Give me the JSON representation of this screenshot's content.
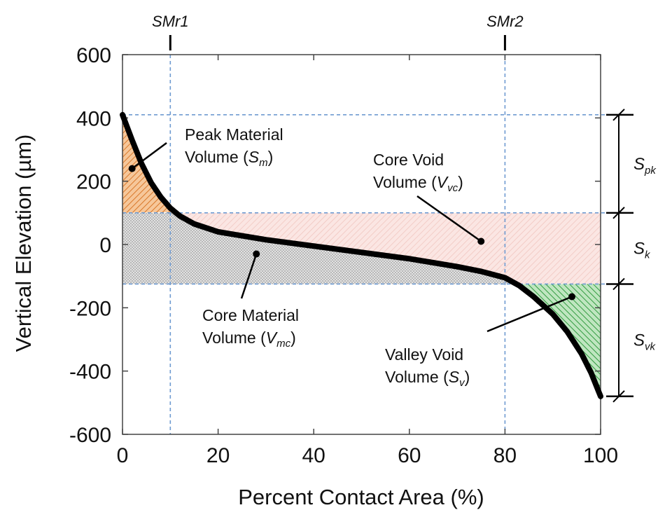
{
  "chart_data": {
    "type": "area",
    "xlabel": "Percent Contact Area (%)",
    "ylabel": "Vertical Elevation (µm)",
    "xlim": [
      0,
      100
    ],
    "ylim": [
      -600,
      600
    ],
    "xticks": [
      0,
      20,
      40,
      60,
      80,
      100
    ],
    "yticks": [
      600,
      400,
      200,
      0,
      -200,
      -400,
      -600
    ],
    "grid": false,
    "series": [
      {
        "x": [
          0,
          2,
          4,
          6,
          8,
          10,
          12,
          15,
          20,
          30,
          40,
          50,
          60,
          70,
          75,
          80,
          83,
          86,
          90,
          93,
          96,
          98,
          100
        ],
        "y": [
          410,
          330,
          255,
          195,
          150,
          115,
          90,
          65,
          40,
          15,
          -5,
          -25,
          -45,
          -70,
          -85,
          -105,
          -130,
          -165,
          -220,
          -275,
          -345,
          -405,
          -480
        ]
      }
    ],
    "reference_lines": {
      "vertical": [
        {
          "label": "SMr1",
          "x": 10
        },
        {
          "label": "SMr2",
          "x": 80
        }
      ],
      "horizontal": [
        410,
        100,
        -125,
        -480
      ]
    },
    "regions": [
      {
        "name": "peak",
        "color": "#e8a060"
      },
      {
        "name": "core_void",
        "color": "#f7d6d2"
      },
      {
        "name": "core_material",
        "color": "#c8c8c8"
      },
      {
        "name": "valley",
        "color": "#3aa84a"
      }
    ],
    "annotations": [
      {
        "id": "peak",
        "lines": [
          "Peak Material",
          "Volume ("
        ],
        "sym": "S",
        "sub": "m",
        "point": [
          2,
          240
        ]
      },
      {
        "id": "core_void",
        "lines": [
          "Core Void",
          "Volume ("
        ],
        "sym": "V",
        "sub": "vc",
        "point": [
          75,
          10
        ]
      },
      {
        "id": "core_material",
        "lines": [
          "Core Material",
          "Volume ("
        ],
        "sym": "V",
        "sub": "mc",
        "point": [
          28,
          -30
        ]
      },
      {
        "id": "valley",
        "lines": [
          "Valley Void",
          "Volume ("
        ],
        "sym": "S",
        "sub": "v",
        "point": [
          94,
          -165
        ]
      }
    ],
    "brackets": [
      {
        "sym": "S",
        "sub": "pk"
      },
      {
        "sym": "S",
        "sub": "k"
      },
      {
        "sym": "S",
        "sub": "vk"
      }
    ]
  }
}
